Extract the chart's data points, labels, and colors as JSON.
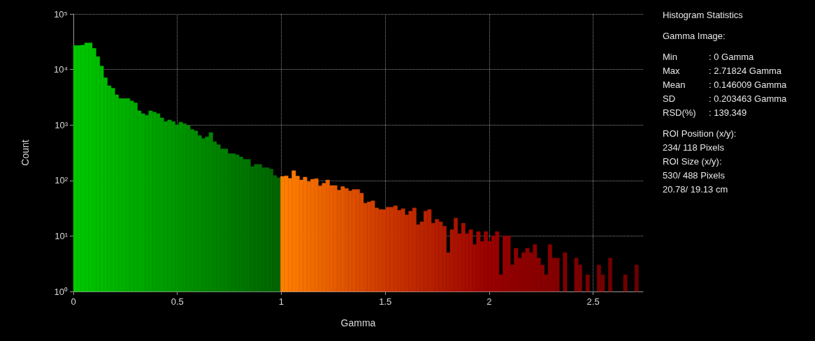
{
  "chart_data": {
    "type": "histogram",
    "xlabel": "Gamma",
    "ylabel": "Count",
    "bins": [
      0,
      0.01812,
      0.03624,
      0.05436,
      0.07248,
      0.0906,
      0.10872,
      0.12684,
      0.14496,
      0.16308,
      0.1812,
      0.19932,
      0.21744,
      0.23556,
      0.25368,
      0.2718,
      0.28992,
      0.30804,
      0.32616,
      0.34428,
      0.3624,
      0.38052,
      0.39864,
      0.41676,
      0.43488,
      0.453,
      0.47112,
      0.48924,
      0.50736,
      0.52548,
      0.5436,
      0.56172,
      0.57984,
      0.59796,
      0.61608,
      0.6342,
      0.65232,
      0.67044,
      0.68856,
      0.70668,
      0.7248,
      0.74292,
      0.76104,
      0.77916,
      0.79728,
      0.8154,
      0.83352,
      0.85164,
      0.86976,
      0.88788,
      0.906,
      0.92412,
      0.94224,
      0.96036,
      0.97848,
      0.9966,
      1.01472,
      1.03284,
      1.05096,
      1.06908,
      1.0872,
      1.10532,
      1.12344,
      1.14156,
      1.15968,
      1.1778,
      1.19592,
      1.21404,
      1.23216,
      1.25028,
      1.2684,
      1.28652,
      1.30464,
      1.32276,
      1.34088,
      1.359,
      1.37712,
      1.39524,
      1.41336,
      1.43148,
      1.4496,
      1.46772,
      1.48584,
      1.50396,
      1.52208,
      1.5402,
      1.55832,
      1.57644,
      1.59456,
      1.61268,
      1.6308,
      1.64892,
      1.66704,
      1.68516,
      1.70328,
      1.7214,
      1.73952,
      1.75764,
      1.77576,
      1.79388,
      1.812,
      1.83012,
      1.84824,
      1.86636,
      1.88448,
      1.9026,
      1.92072,
      1.93884,
      1.95696,
      1.97508,
      1.9932,
      2.01132,
      2.02944,
      2.04756,
      2.06568,
      2.0838,
      2.10192,
      2.12004,
      2.13816,
      2.15628,
      2.1744,
      2.19252,
      2.21064,
      2.22876,
      2.24688,
      2.265,
      2.28312,
      2.30124,
      2.31936,
      2.33748,
      2.3556,
      2.37372,
      2.39184,
      2.40996,
      2.42808,
      2.4462,
      2.46432,
      2.48244,
      2.50056,
      2.51868,
      2.5368,
      2.55492,
      2.57304,
      2.59116,
      2.60928,
      2.6274,
      2.64552,
      2.66364,
      2.68176,
      2.69988,
      2.718
    ],
    "values": [
      27000,
      27000,
      27500,
      30000,
      30000,
      24000,
      17000,
      11500,
      7100,
      5100,
      4600,
      3500,
      3000,
      3000,
      3000,
      2700,
      2500,
      1800,
      1600,
      1500,
      1800,
      1700,
      1600,
      1340,
      1150,
      1230,
      1150,
      1000,
      1120,
      1050,
      980,
      830,
      780,
      645,
      570,
      610,
      730,
      500,
      440,
      370,
      370,
      305,
      305,
      290,
      265,
      240,
      240,
      178,
      195,
      195,
      170,
      170,
      160,
      123,
      112,
      118,
      121,
      109,
      150,
      120,
      102,
      115,
      95,
      105,
      108,
      80,
      89,
      102,
      81,
      81,
      67,
      78,
      72,
      65,
      69,
      69,
      59,
      39,
      41,
      43,
      32,
      30,
      30,
      33,
      33,
      35,
      29,
      31,
      24,
      28,
      32,
      16,
      18,
      28,
      30,
      17,
      20,
      18,
      15,
      5,
      13,
      21,
      11,
      17,
      11,
      13,
      7,
      12,
      8,
      12,
      8,
      10,
      12,
      2,
      10,
      10,
      3,
      6,
      4,
      5,
      6,
      5,
      7,
      4,
      3,
      2,
      7,
      4,
      4,
      null,
      5,
      null,
      null,
      4,
      3,
      null,
      2,
      null,
      null,
      3,
      2,
      null,
      4,
      null,
      null,
      null,
      2,
      null,
      null,
      3
    ],
    "colors": [
      "#00c800",
      "#00c600",
      "#00c400",
      "#00c200",
      "#00c100",
      "#00bf00",
      "#00bd00",
      "#00bb00",
      "#00b900",
      "#00b700",
      "#00b500",
      "#00b400",
      "#00b200",
      "#00b000",
      "#00ae00",
      "#00ac00",
      "#00aa00",
      "#00a900",
      "#00a700",
      "#00a500",
      "#00a300",
      "#00a100",
      "#009f00",
      "#009d00",
      "#009c00",
      "#009a00",
      "#009800",
      "#009600",
      "#009400",
      "#009200",
      "#009000",
      "#008f00",
      "#008d00",
      "#008b00",
      "#008900",
      "#008700",
      "#008500",
      "#008300",
      "#008200",
      "#008000",
      "#007e00",
      "#007c00",
      "#007a00",
      "#007800",
      "#007700",
      "#007500",
      "#007300",
      "#007100",
      "#006f00",
      "#006d00",
      "#006b00",
      "#006a00",
      "#006800",
      "#006600",
      "#006400",
      "#ff8000",
      "#fd7d00",
      "#fb7b00",
      "#f97800",
      "#f87600",
      "#f67300",
      "#f47000",
      "#f26e00",
      "#f06b00",
      "#ee6800",
      "#ec6600",
      "#eb6300",
      "#e96000",
      "#e75e00",
      "#e55b00",
      "#e35900",
      "#e15600",
      "#df5300",
      "#dd5100",
      "#dc4e00",
      "#da4c00",
      "#d84900",
      "#d64600",
      "#d44400",
      "#d24100",
      "#d03f00",
      "#ce3c00",
      "#cd3900",
      "#cb3700",
      "#c93500",
      "#c83300",
      "#c63100",
      "#c42f00",
      "#c22d00",
      "#c02b00",
      "#be2900",
      "#bc2700",
      "#ba2500",
      "#b82300",
      "#b72100",
      "#b51f00",
      "#b31d00",
      "#b11b00",
      "#af1900",
      "#ad1700",
      "#ab1500",
      "#aa1300",
      "#a81100",
      "#a60f00",
      "#a40d00",
      "#a20b00",
      "#a00900",
      "#9e0600",
      "#9c0400",
      "#9a0200",
      "#990000",
      "#980000",
      "#960000",
      "#950000",
      "#940000",
      "#930000",
      "#910000",
      "#900000",
      "#8f0000",
      "#8e0000",
      "#8d0000",
      "#8c0000",
      "#8a0000",
      "#890000",
      "#880000",
      "#870000",
      "#860000",
      "#840000",
      "#830000",
      "#820000",
      "#810000",
      "#800000",
      "#7e0000",
      "#7d0000",
      "#7c0000",
      "#7b0000",
      "#7a0000",
      "#780000",
      "#770000",
      "#760000",
      "#750000",
      "#730000",
      "#720000",
      "#710000",
      "#700000",
      "#6f0000",
      "#6e0000",
      "#6c0000",
      "#6b0000",
      "#6a0000"
    ],
    "xlim": [
      0,
      2.74
    ],
    "xticks": [
      0,
      {
        "value": 0.5,
        "label": "0.5"
      },
      1,
      {
        "value": 1.5,
        "label": "1.5"
      },
      2,
      {
        "value": 2.5,
        "label": "2.5"
      }
    ],
    "ylim": [
      1,
      100000
    ],
    "yticks": [
      {
        "value": 1,
        "label": "10⁰"
      },
      {
        "value": 10,
        "label": "10¹"
      },
      {
        "value": 100,
        "label": "10²"
      },
      {
        "value": 1000,
        "label": "10³"
      },
      {
        "value": 10000,
        "label": "10⁴"
      },
      {
        "value": 100000,
        "label": "10⁵"
      }
    ],
    "log": "y",
    "grid": true,
    "line_style": "dotted",
    "annotations": [
      "Histogram Statistics",
      "Gamma Image:",
      "Min\t: 0 Gamma",
      "Max\t: 2.71824 Gamma",
      "Mean\t: 0.146009 Gamma",
      "SD\t: 0.203463 Gamma",
      "RSD(%)\t: 139.349",
      "ROI Position (x/y):",
      "234/ 118 Pixels",
      "ROI Size (x/y):",
      "530/ 488 Pixels",
      "20.78/ 19.13 cm"
    ]
  }
}
